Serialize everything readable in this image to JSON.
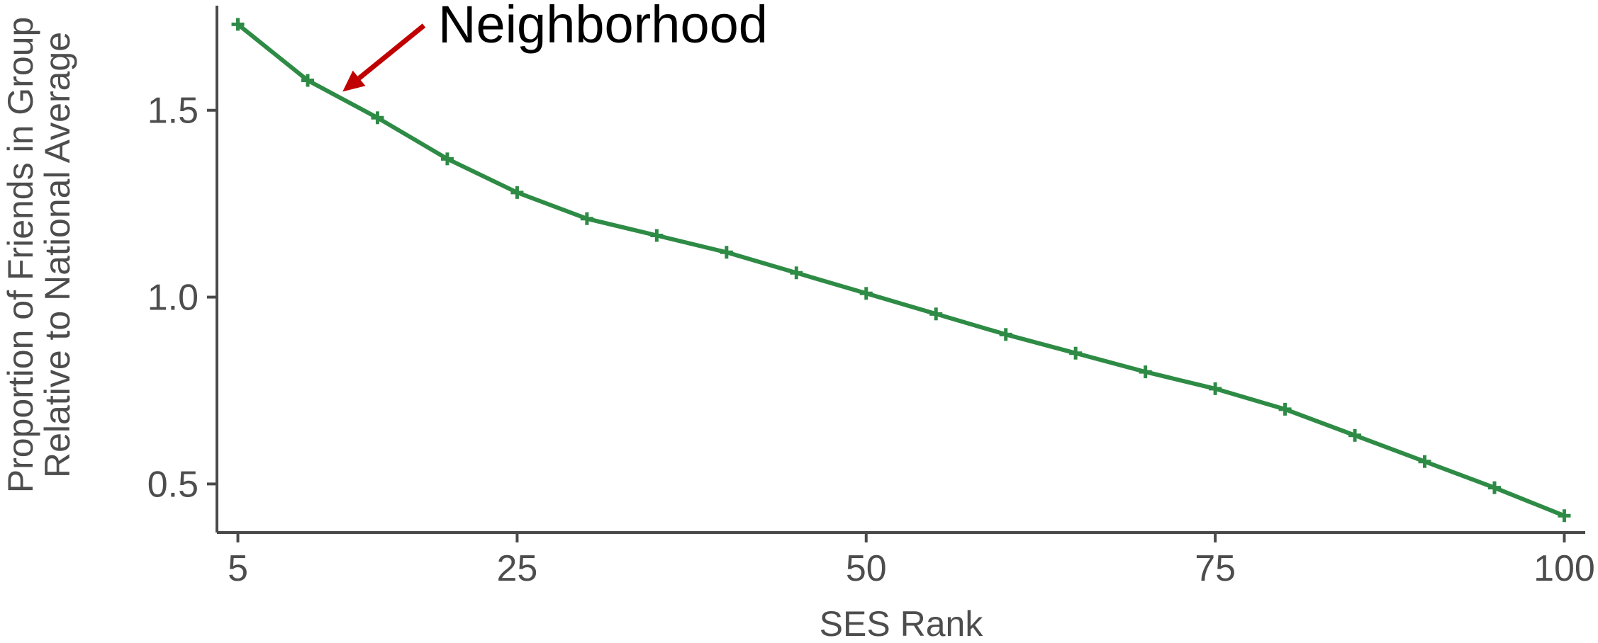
{
  "chart_data": {
    "type": "line",
    "title": "",
    "xlabel": "SES Rank",
    "ylabel_line1": "Proportion of Friends in Group",
    "ylabel_line2": "Relative to National Average",
    "x_ticks": [
      5,
      25,
      50,
      75,
      100
    ],
    "x_tick_labels": [
      "5",
      "25",
      "50",
      "75",
      "100"
    ],
    "y_ticks": [
      0.5,
      1.0,
      1.5
    ],
    "y_tick_labels": [
      "0.5",
      "1.0",
      "1.5"
    ],
    "xlim": [
      3.5,
      101.5
    ],
    "ylim": [
      0.37,
      1.78
    ],
    "grid": false,
    "series": [
      {
        "name": "Neighborhood",
        "color": "#2e8b45",
        "marker": "plus",
        "x": [
          5,
          10,
          15,
          20,
          25,
          30,
          35,
          40,
          45,
          50,
          55,
          60,
          65,
          70,
          75,
          80,
          85,
          90,
          95,
          100
        ],
        "y": [
          1.73,
          1.58,
          1.48,
          1.37,
          1.28,
          1.21,
          1.165,
          1.12,
          1.065,
          1.01,
          0.955,
          0.9,
          0.85,
          0.8,
          0.755,
          0.7,
          0.63,
          0.56,
          0.49,
          0.415
        ]
      }
    ],
    "annotations": [
      {
        "text": "Neighborhood",
        "color": "#000000",
        "arrow_color": "#c00000",
        "points_to": {
          "x": 12.5,
          "y": 1.55
        }
      }
    ]
  }
}
